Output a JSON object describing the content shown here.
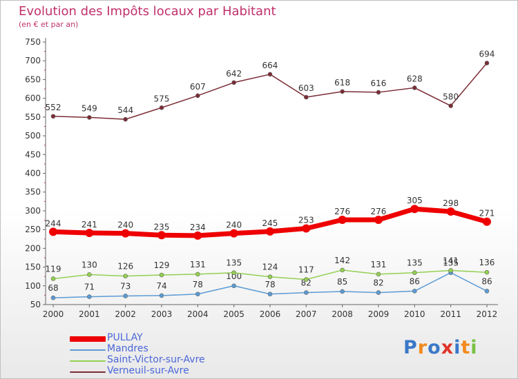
{
  "header": {
    "title": "Evolution des Impôts locaux par Habitant",
    "subtitle": "(en € et par an)"
  },
  "logo": {
    "text": "Proxiti",
    "colors": [
      "#3a78c8",
      "#f28a1e",
      "#3a78c8",
      "#e0342a",
      "#3a78c8",
      "#f28a1e",
      "#7ac143"
    ]
  },
  "chart_data": {
    "type": "line",
    "title": "Evolution des Impôts locaux par Habitant",
    "subtitle": "(en € et par an)",
    "x": [
      "2000",
      "2001",
      "2002",
      "2003",
      "2004",
      "2005",
      "2006",
      "2007",
      "2008",
      "2009",
      "2010",
      "2011",
      "2012"
    ],
    "yticks": [
      50,
      100,
      150,
      200,
      250,
      300,
      350,
      400,
      450,
      500,
      550,
      600,
      650,
      700,
      750
    ],
    "ylim": [
      50,
      750
    ],
    "grid": false,
    "legend_position": "bottom-left",
    "series": [
      {
        "name": "PULLAY",
        "color": "#ee0000",
        "values": [
          244,
          241,
          240,
          235,
          234,
          240,
          245,
          253,
          276,
          276,
          305,
          298,
          271
        ]
      },
      {
        "name": "Mandres",
        "color": "#5b9bd5",
        "values": [
          68,
          71,
          73,
          74,
          78,
          100,
          78,
          82,
          85,
          82,
          86,
          135,
          86
        ]
      },
      {
        "name": "Saint-Victor-sur-Avre",
        "color": "#92d050",
        "values": [
          119,
          130,
          126,
          129,
          131,
          135,
          124,
          117,
          142,
          131,
          135,
          141,
          136
        ]
      },
      {
        "name": "Verneuil-sur-Avre",
        "color": "#7b2c35",
        "values": [
          552,
          549,
          544,
          575,
          607,
          642,
          664,
          603,
          618,
          616,
          628,
          580,
          694
        ]
      }
    ]
  }
}
